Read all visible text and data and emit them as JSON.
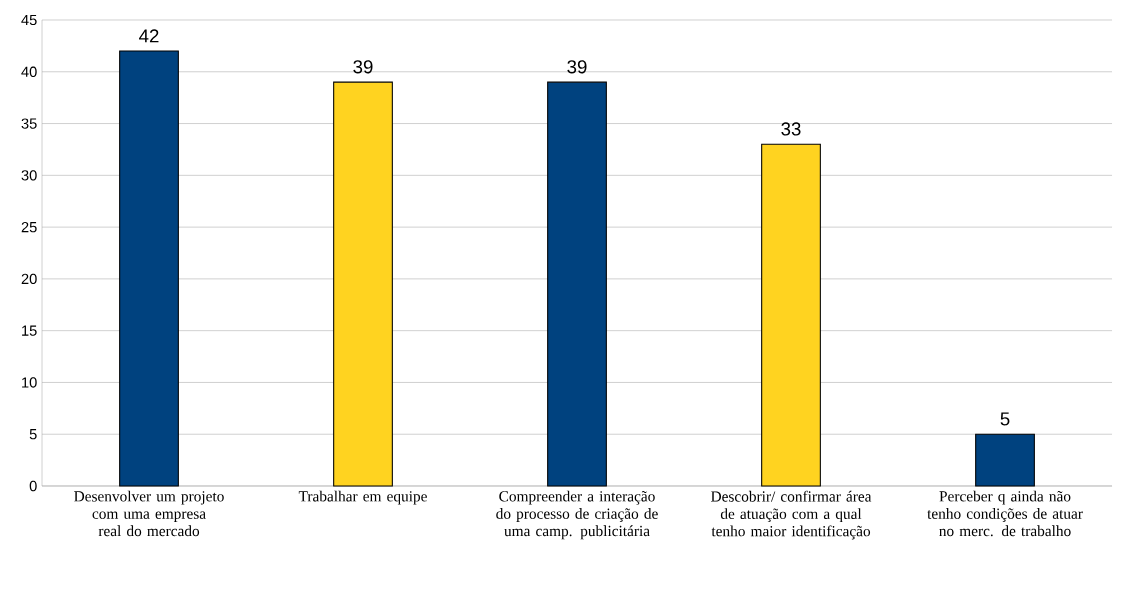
{
  "chart_data": {
    "type": "bar",
    "categories": [
      "Desenvolver um projeto com uma empresa real do mercado",
      "Trabalhar em equipe",
      "Compreender a interação do processo de criação de uma camp. publicitária",
      "Descobrir/ confirmar área de atuação  com a qual tenho maior identificação",
      "Perceber q ainda não tenho condições  de atuar no merc. de trabalho"
    ],
    "values": [
      42,
      39,
      39,
      33,
      5
    ],
    "colors": [
      "#00427f",
      "#ffd320",
      "#00427f",
      "#ffd320",
      "#00427f"
    ],
    "ylim": [
      0,
      45
    ],
    "yticks": [
      0,
      5,
      10,
      15,
      20,
      25,
      30,
      35,
      40,
      45
    ],
    "grid": "y",
    "data_labels": true
  }
}
